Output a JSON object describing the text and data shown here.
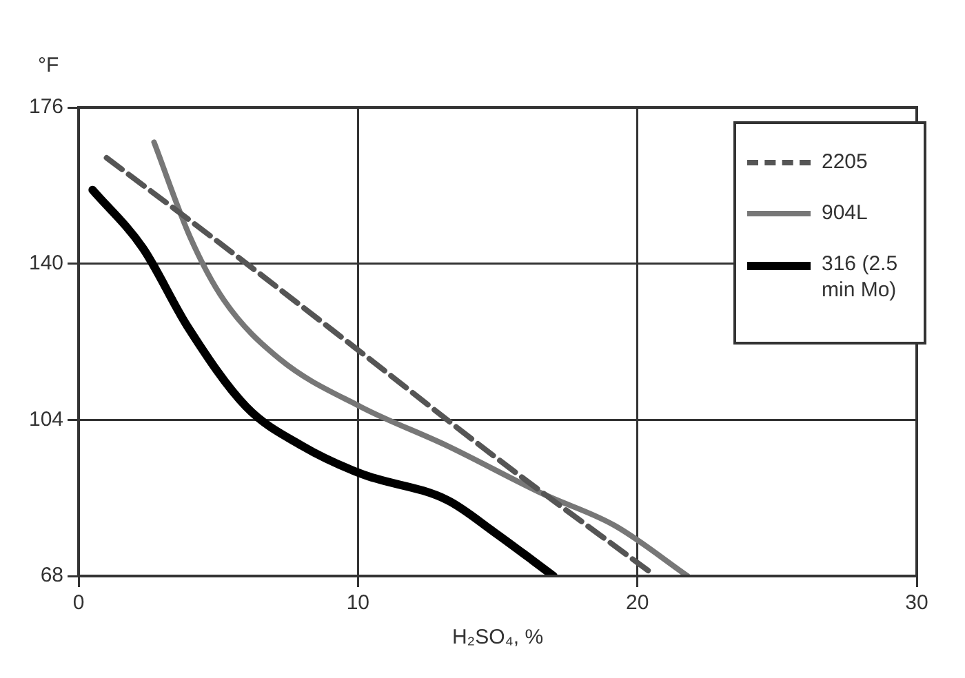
{
  "chart_data": {
    "type": "line",
    "xlabel": "H₂SO₄, %",
    "ylabel": "°F",
    "xlim": [
      0,
      30
    ],
    "xticks": [
      0,
      10,
      20,
      30
    ],
    "ylim": [
      68,
      176
    ],
    "yticks": [
      68,
      104,
      140,
      176
    ],
    "grid": true,
    "legend": "top right",
    "marker": "none",
    "series": [
      {
        "name": "2205",
        "color": "#555555",
        "line_style": "dashed",
        "x": [
          1.0,
          5.0,
          10.1,
          15.0,
          20.5
        ],
        "values": [
          164.4,
          145,
          119.6,
          95,
          68.7
        ]
      },
      {
        "name": "904L",
        "color": "#777777",
        "line_style": "solid",
        "x": [
          2.7,
          4.0,
          5.2,
          7.2,
          10.1,
          13.2,
          16.6,
          19.2,
          21.8
        ],
        "values": [
          168,
          146,
          131.6,
          118,
          107,
          98,
          87,
          79.6,
          68
        ]
      },
      {
        "name": "316 (2.5 min Mo)",
        "color": "#000000",
        "line_style": "solid",
        "x": [
          0.5,
          2.3,
          3.9,
          6.0,
          8.0,
          10.1,
          13.2,
          14.9,
          17
        ],
        "values": [
          157,
          143.6,
          125.5,
          107,
          98,
          91.6,
          85.5,
          78,
          68
        ]
      }
    ]
  }
}
